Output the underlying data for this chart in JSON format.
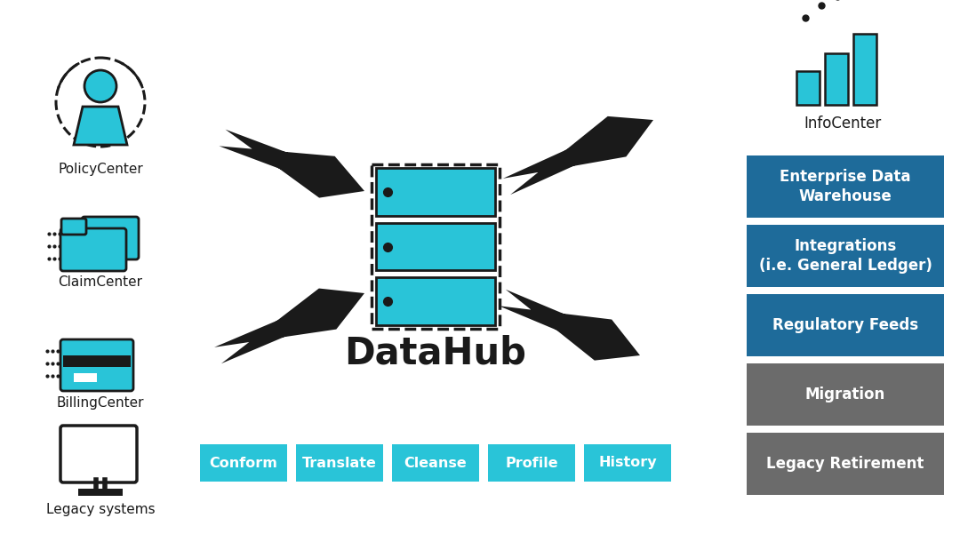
{
  "bg_color": "#ffffff",
  "left_labels": [
    "PolicyCenter",
    "ClaimCenter",
    "BillingCenter",
    "Legacy systems"
  ],
  "right_boxes": [
    {
      "label": "Enterprise Data\nWarehouse",
      "color": "#1e6b9a",
      "text_color": "#ffffff"
    },
    {
      "label": "Integrations\n(i.e. General Ledger)",
      "color": "#1e6b9a",
      "text_color": "#ffffff"
    },
    {
      "label": "Regulatory Feeds",
      "color": "#1e6b9a",
      "text_color": "#ffffff"
    },
    {
      "label": "Migration",
      "color": "#6b6b6b",
      "text_color": "#ffffff"
    },
    {
      "label": "Legacy Retirement",
      "color": "#6b6b6b",
      "text_color": "#ffffff"
    }
  ],
  "bottom_buttons": [
    "Conform",
    "Translate",
    "Cleanse",
    "Profile",
    "History"
  ],
  "button_color": "#29c4d8",
  "button_text_color": "#ffffff",
  "datahub_label": "DataHub",
  "infocenter_label": "InfoCenter",
  "arrow_color": "#1a1a1a",
  "teal_color": "#29c4d8",
  "dark_color": "#1a1a1a"
}
